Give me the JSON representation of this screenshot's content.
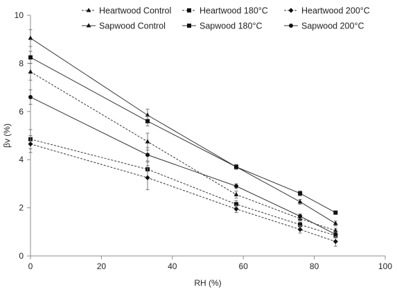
{
  "chart_data": {
    "type": "line",
    "title": "",
    "xlabel": "RH (%)",
    "ylabel": "βv (%)",
    "xlim": [
      0,
      100
    ],
    "ylim": [
      0,
      10
    ],
    "xticks": [
      0,
      20,
      40,
      60,
      80,
      100
    ],
    "yticks": [
      0,
      2,
      4,
      6,
      8,
      10
    ],
    "grid": false,
    "legend_position": "top",
    "x": [
      0,
      33,
      58,
      76,
      86
    ],
    "series": [
      {
        "name": "Heartwood Control",
        "line": "dotted",
        "marker": "triangle",
        "values": [
          7.65,
          4.75,
          2.55,
          1.55,
          1.05
        ],
        "error": [
          0.35,
          0.35,
          0.15,
          0.1,
          0.1
        ]
      },
      {
        "name": "Heartwood 180°C",
        "line": "dotted",
        "marker": "square",
        "values": [
          4.85,
          3.6,
          2.15,
          1.3,
          0.85
        ],
        "error": [
          0.4,
          0.35,
          0.15,
          0.1,
          0.1
        ]
      },
      {
        "name": "Heartwood 200°C",
        "line": "dotted",
        "marker": "diamond",
        "values": [
          4.65,
          3.25,
          1.95,
          1.1,
          0.6
        ],
        "error": [
          0.35,
          0.5,
          0.15,
          0.15,
          0.2
        ]
      },
      {
        "name": "Sapwood Control",
        "line": "solid",
        "marker": "triangle",
        "values": [
          9.05,
          5.85,
          3.7,
          2.25,
          1.35
        ],
        "error": [
          0.35,
          0.25,
          0.1,
          0.1,
          0.1
        ]
      },
      {
        "name": "Sapwood 180°C",
        "line": "solid",
        "marker": "square",
        "values": [
          8.25,
          5.6,
          3.7,
          2.6,
          1.8
        ],
        "error": [
          0.25,
          0.2,
          0.1,
          0.1,
          0.05
        ]
      },
      {
        "name": "Sapwood 200°C",
        "line": "solid",
        "marker": "circle",
        "values": [
          6.6,
          4.2,
          2.9,
          1.65,
          0.9
        ],
        "error": [
          0.3,
          0.3,
          0.1,
          0.1,
          0.1
        ]
      }
    ]
  }
}
